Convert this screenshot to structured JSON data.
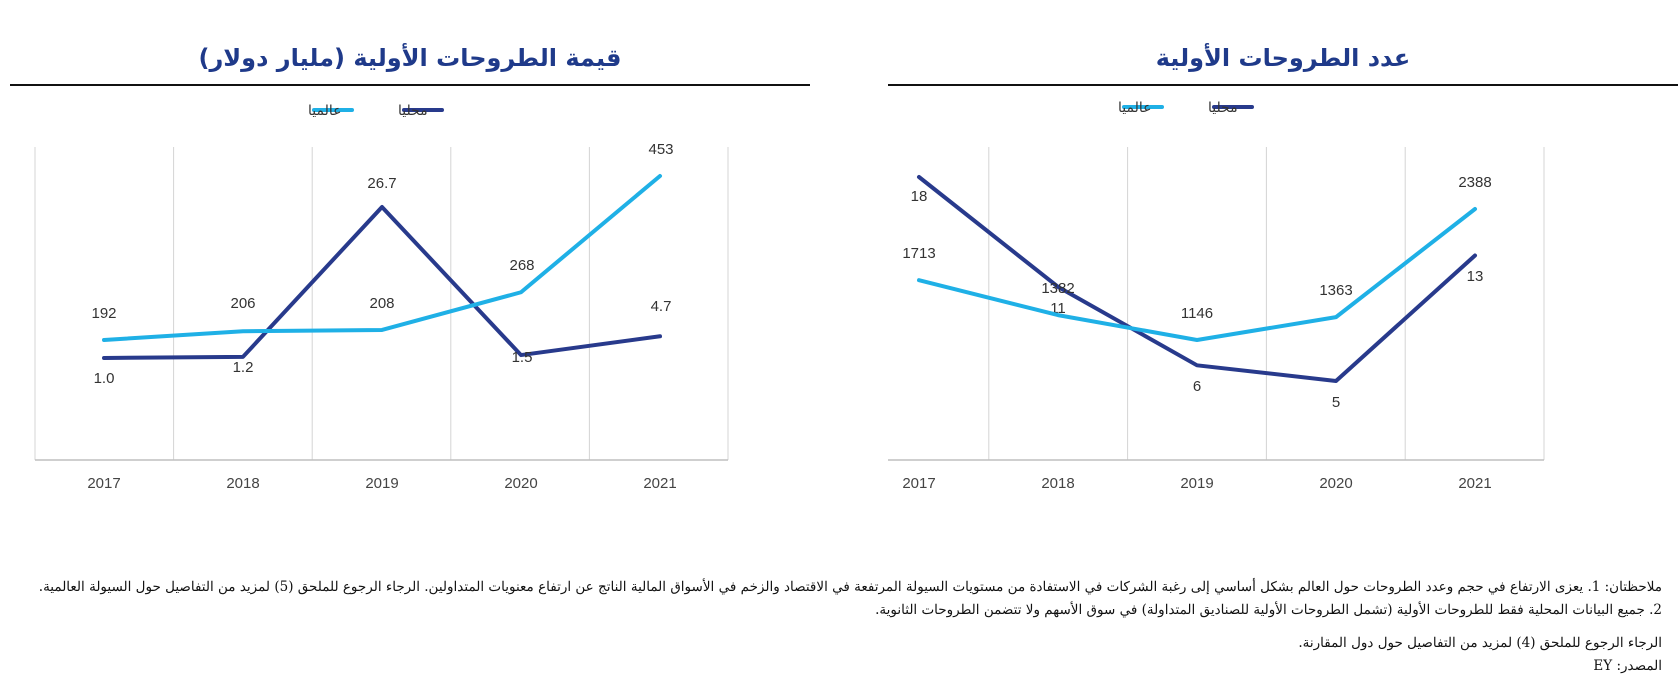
{
  "chart_data": [
    {
      "type": "line",
      "title": "قيمة الطروحات الأولية (مليار دولار)",
      "categories": [
        "2017",
        "2018",
        "2019",
        "2020",
        "2021"
      ],
      "legend_placement": "top-center",
      "grid": "vertical",
      "series": [
        {
          "name": "محليا",
          "color": "#283a8c",
          "values": [
            1.0,
            1.2,
            26.7,
            1.5,
            4.7
          ],
          "labels": [
            "1.0",
            "1.2",
            "26.7",
            "1.5",
            "4.7"
          ]
        },
        {
          "name": "عالميا",
          "color": "#1fb0e6",
          "values": [
            192,
            206,
            208,
            268,
            453
          ],
          "labels": [
            "192",
            "206",
            "208",
            "268",
            "453"
          ]
        }
      ]
    },
    {
      "type": "line",
      "title": "عدد الطروحات الأولية",
      "categories": [
        "2017",
        "2018",
        "2019",
        "2020",
        "2021"
      ],
      "legend_placement": "top-center",
      "grid": "vertical",
      "series": [
        {
          "name": "محليا",
          "color": "#283a8c",
          "values": [
            18,
            11,
            6,
            5,
            13
          ],
          "labels": [
            "18",
            "11",
            "6",
            "5",
            "13"
          ]
        },
        {
          "name": "عالميا",
          "color": "#1fb0e6",
          "values": [
            1713,
            1382,
            1146,
            1363,
            2388
          ],
          "labels": [
            "1713",
            "1382",
            "1146",
            "1363",
            "2388"
          ]
        }
      ]
    }
  ],
  "notes": {
    "line1": "ملاحظتان: 1. يعزى الارتفاع في حجم وعدد الطروحات حول العالم بشكل أساسي إلى رغبة الشركات في الاستفادة من مستويات السيولة المرتفعة في الاقتصاد والزخم في الأسواق المالية الناتج عن ارتفاع معنويات المتداولين. الرجاء الرجوع للملحق (5) لمزيد من التفاصيل حول السيولة العالمية.",
    "line2": "2. جميع البيانات المحلية فقط للطروحات الأولية (تشمل الطروحات الأولية للصناديق المتداولة) في سوق الأسهم ولا تتضمن الطروحات الثانوية.",
    "line3": "الرجاء الرجوع للملحق (4) لمزيد من التفاصيل حول دول المقارنة.",
    "source": "المصدر: EY"
  },
  "colors": {
    "local": "#283a8c",
    "global": "#1fb0e6",
    "title": "#1f3a8a",
    "grid": "#d4d4d4"
  }
}
